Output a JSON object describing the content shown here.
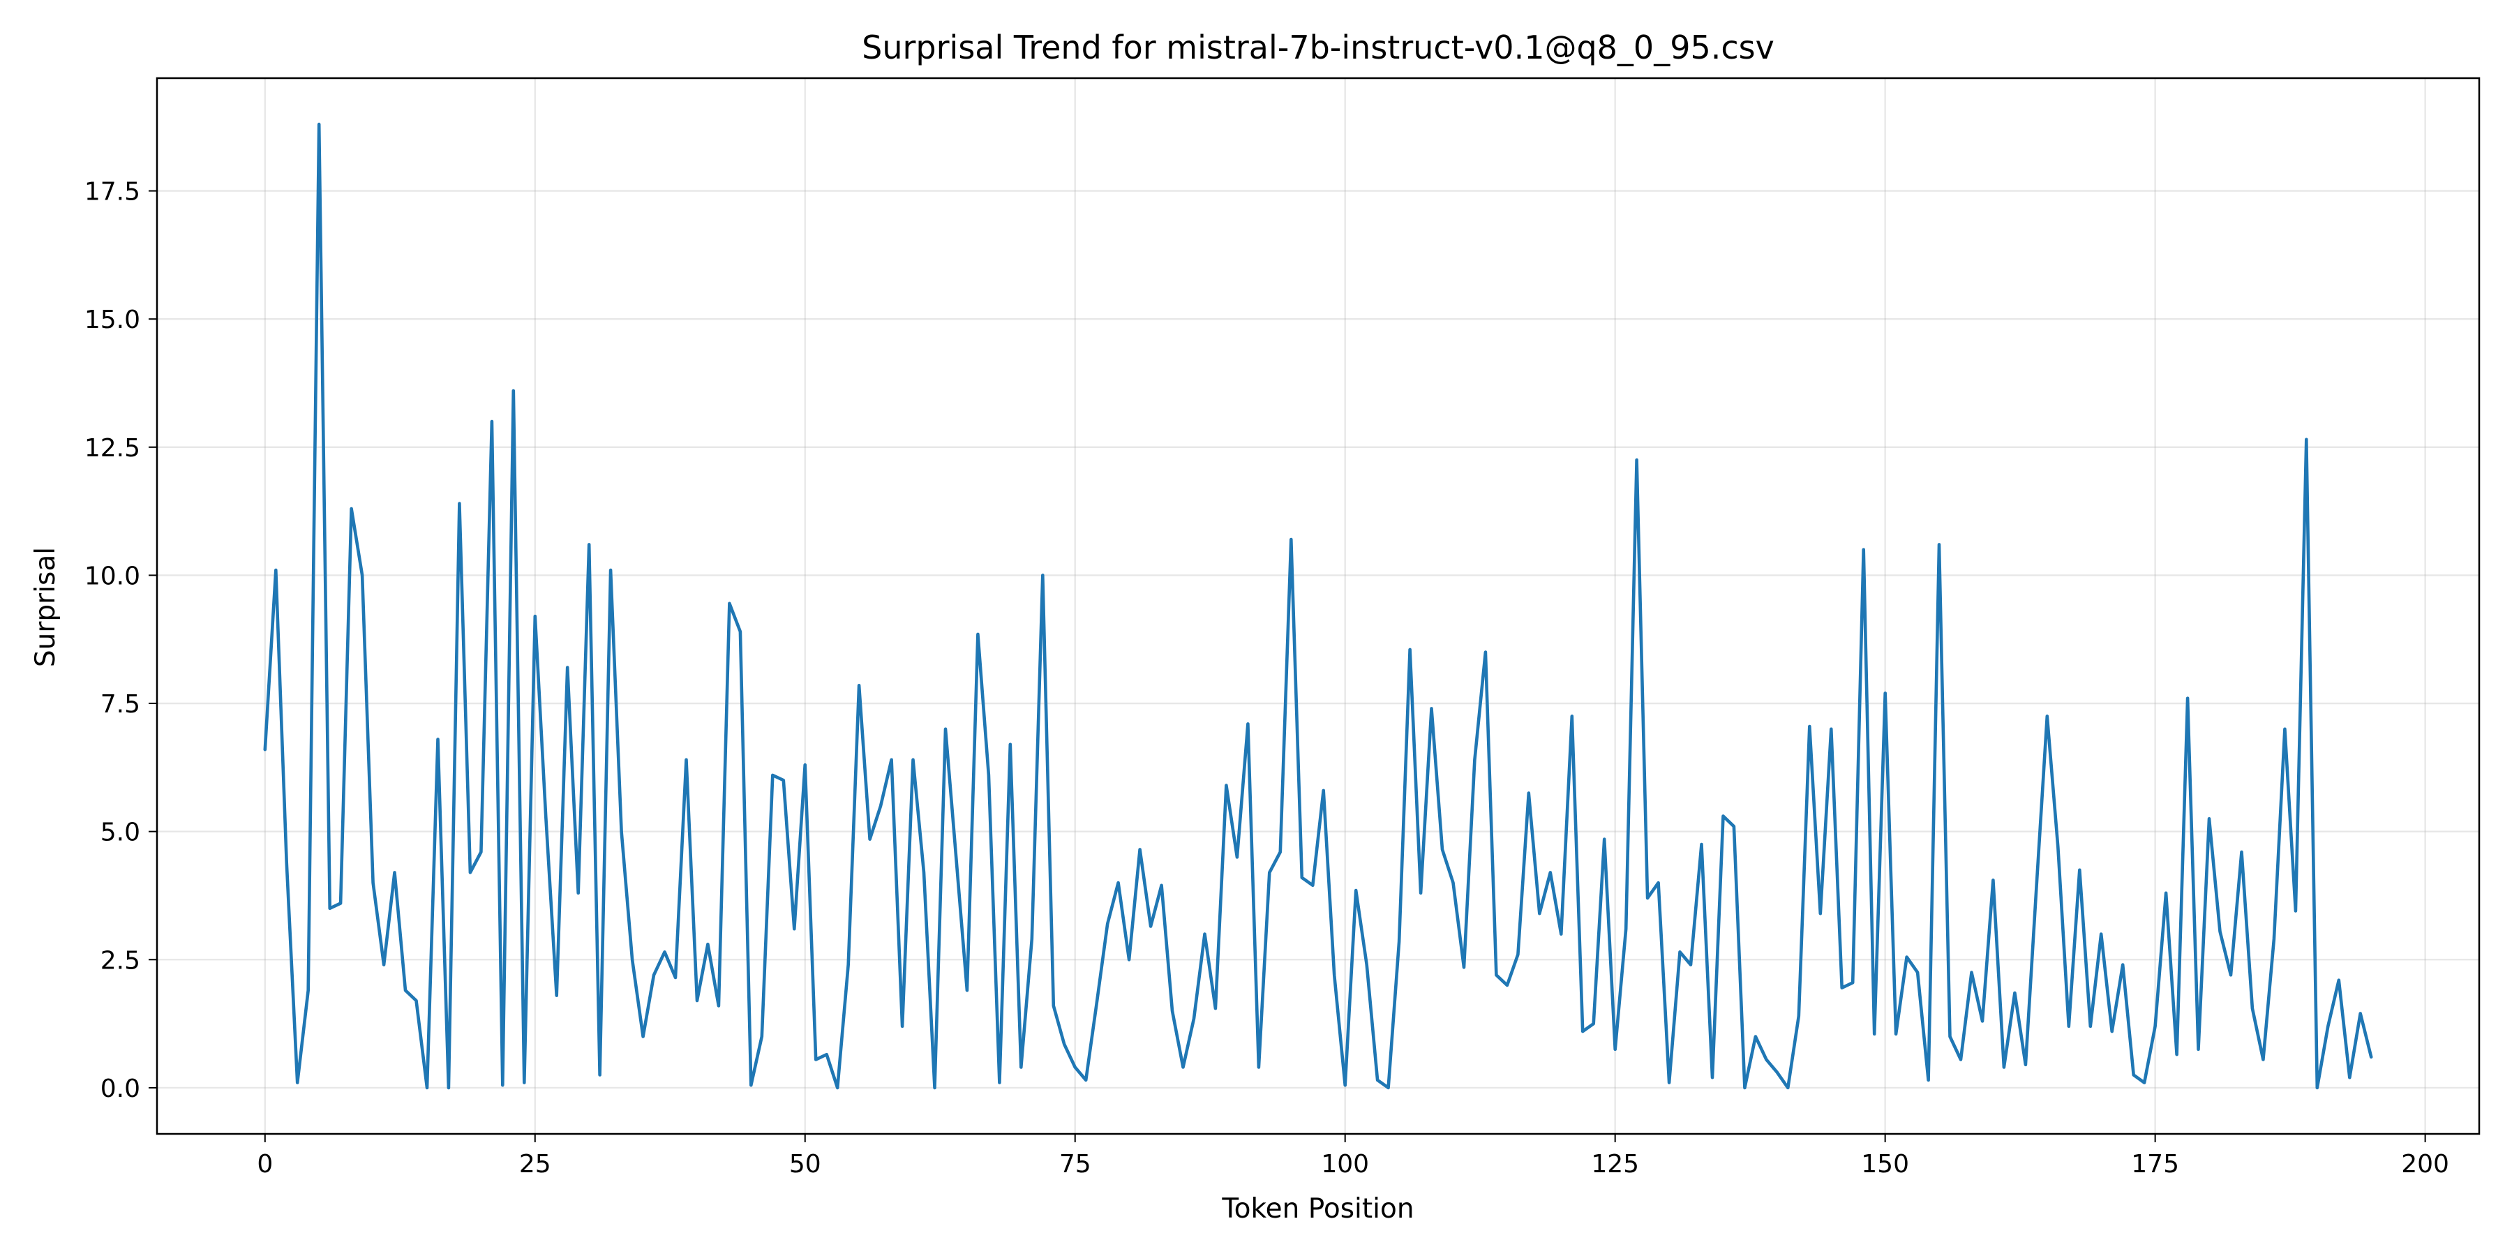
{
  "chart_data": {
    "type": "line",
    "title": "Surprisal Trend for mistral-7b-instruct-v0.1@q8_0_95.csv",
    "xlabel": "Token Position",
    "ylabel": "Surprisal",
    "xlim": [
      -10,
      205
    ],
    "ylim": [
      -0.9,
      19.7
    ],
    "xticks": [
      0,
      25,
      50,
      75,
      100,
      125,
      150,
      175,
      200
    ],
    "xtick_labels": [
      "0",
      "25",
      "50",
      "75",
      "100",
      "125",
      "150",
      "175",
      "200"
    ],
    "yticks": [
      0,
      2.5,
      5,
      7.5,
      10,
      12.5,
      15,
      17.5
    ],
    "ytick_labels": [
      "0.0",
      "2.5",
      "5.0",
      "7.5",
      "10.0",
      "12.5",
      "15.0",
      "17.5"
    ],
    "grid": true,
    "line_color": "#1f77b4",
    "series": [
      {
        "values": [
          6.6,
          10.1,
          4.4,
          0.1,
          1.9,
          18.8,
          3.5,
          3.6,
          11.3,
          10.0,
          4.0,
          2.4,
          4.2,
          1.9,
          1.7,
          0.0,
          6.8,
          0.0,
          11.4,
          4.2,
          4.6,
          13.0,
          0.05,
          13.6,
          0.1,
          9.2,
          5.3,
          1.8,
          8.2,
          3.8,
          10.6,
          0.25,
          10.1,
          5.0,
          2.5,
          1.0,
          2.2,
          2.65,
          2.15,
          6.4,
          1.7,
          2.8,
          1.6,
          9.45,
          8.9,
          0.05,
          1.0,
          6.1,
          6.0,
          3.1,
          6.3,
          0.55,
          0.65,
          0.0,
          2.4,
          7.85,
          4.85,
          5.5,
          6.4,
          1.2,
          6.4,
          4.2,
          0.0,
          7.0,
          4.45,
          1.9,
          8.85,
          6.1,
          0.1,
          6.7,
          0.4,
          2.9,
          10.0,
          1.6,
          0.85,
          0.4,
          0.15,
          1.65,
          3.2,
          4.0,
          2.5,
          4.65,
          3.15,
          3.95,
          1.5,
          0.4,
          1.35,
          3.0,
          1.55,
          5.9,
          4.5,
          7.1,
          0.4,
          4.2,
          4.6,
          10.7,
          4.1,
          3.95,
          5.8,
          2.2,
          0.05,
          3.85,
          2.4,
          0.15,
          0.0,
          2.85,
          8.55,
          3.8,
          7.4,
          4.65,
          4.0,
          2.35,
          6.4,
          8.5,
          2.2,
          2.0,
          2.6,
          5.75,
          3.4,
          4.2,
          3.0,
          7.25,
          1.1,
          1.25,
          4.85,
          0.75,
          3.1,
          12.25,
          3.7,
          4.0,
          0.1,
          2.65,
          2.4,
          4.75,
          0.2,
          5.3,
          5.1,
          0.0,
          1.0,
          0.55,
          0.3,
          0.0,
          1.4,
          7.05,
          3.4,
          7.0,
          1.95,
          2.05,
          10.5,
          1.05,
          7.7,
          1.05,
          2.55,
          2.25,
          0.15,
          10.6,
          1.0,
          0.55,
          2.25,
          1.3,
          4.05,
          0.4,
          1.85,
          0.45,
          3.9,
          7.25,
          4.7,
          1.2,
          4.25,
          1.2,
          3.0,
          1.1,
          2.4,
          0.25,
          0.1,
          1.2,
          3.8,
          0.65,
          7.6,
          0.75,
          5.25,
          3.05,
          2.2,
          4.6,
          1.55,
          0.55,
          2.9,
          7.0,
          3.45,
          12.65,
          0.0,
          1.2,
          2.1,
          0.2,
          1.45,
          0.6
        ]
      }
    ]
  }
}
